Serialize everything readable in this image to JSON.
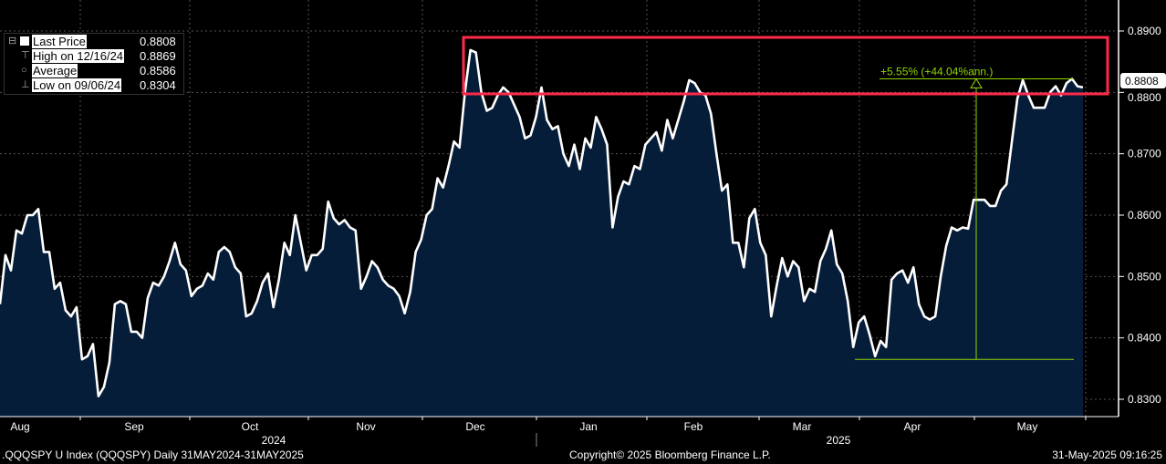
{
  "chart_data": {
    "type": "area",
    "title": ".QQQSPY U Index (QQQSPY)",
    "series": [
      {
        "name": "Last Price",
        "color": "#ffffff",
        "fill": "#061d3a",
        "values": [
          0.8455,
          0.8535,
          0.851,
          0.8575,
          0.857,
          0.86,
          0.86,
          0.861,
          0.854,
          0.854,
          0.848,
          0.849,
          0.8445,
          0.8435,
          0.845,
          0.8365,
          0.837,
          0.839,
          0.8305,
          0.832,
          0.836,
          0.8455,
          0.846,
          0.8455,
          0.841,
          0.841,
          0.84,
          0.8465,
          0.849,
          0.8485,
          0.85,
          0.8525,
          0.8555,
          0.852,
          0.851,
          0.8468,
          0.848,
          0.8485,
          0.8505,
          0.8495,
          0.854,
          0.8548,
          0.854,
          0.8515,
          0.8505,
          0.8435,
          0.844,
          0.846,
          0.849,
          0.8505,
          0.845,
          0.8495,
          0.8555,
          0.8535,
          0.86,
          0.8555,
          0.851,
          0.8535,
          0.8535,
          0.8545,
          0.8622,
          0.8595,
          0.8585,
          0.8592,
          0.858,
          0.8575,
          0.848,
          0.85,
          0.8525,
          0.8515,
          0.8495,
          0.8485,
          0.848,
          0.8468,
          0.844,
          0.8475,
          0.854,
          0.856,
          0.86,
          0.861,
          0.866,
          0.8645,
          0.868,
          0.872,
          0.871,
          0.88,
          0.8869,
          0.8865,
          0.88,
          0.877,
          0.8775,
          0.8795,
          0.8808,
          0.88,
          0.878,
          0.876,
          0.8725,
          0.873,
          0.876,
          0.8808,
          0.8755,
          0.874,
          0.8745,
          0.87,
          0.868,
          0.8715,
          0.8675,
          0.8725,
          0.871,
          0.876,
          0.874,
          0.8715,
          0.858,
          0.863,
          0.8655,
          0.865,
          0.868,
          0.8675,
          0.8715,
          0.8725,
          0.8735,
          0.8705,
          0.8755,
          0.8725,
          0.8755,
          0.8785,
          0.882,
          0.8815,
          0.88,
          0.8795,
          0.8765,
          0.87,
          0.864,
          0.865,
          0.8555,
          0.8555,
          0.8515,
          0.8595,
          0.861,
          0.8555,
          0.8535,
          0.8435,
          0.8485,
          0.853,
          0.85,
          0.8525,
          0.8515,
          0.846,
          0.848,
          0.8475,
          0.8525,
          0.8545,
          0.8575,
          0.852,
          0.8505,
          0.846,
          0.8385,
          0.8425,
          0.8435,
          0.8405,
          0.837,
          0.8395,
          0.8385,
          0.8495,
          0.8505,
          0.851,
          0.849,
          0.8515,
          0.8455,
          0.8435,
          0.843,
          0.8435,
          0.85,
          0.855,
          0.858,
          0.8575,
          0.858,
          0.8578,
          0.8625,
          0.8625,
          0.8625,
          0.8615,
          0.8615,
          0.864,
          0.865,
          0.872,
          0.879,
          0.882,
          0.8795,
          0.8775,
          0.8775,
          0.8775,
          0.88,
          0.881,
          0.8795,
          0.8815,
          0.8822,
          0.881,
          0.8808
        ]
      }
    ],
    "ylim": [
      0.8265,
      0.895
    ],
    "yticks": [
      "0.8300",
      "0.8400",
      "0.8500",
      "0.8600",
      "0.8700",
      "0.8800",
      "0.8900"
    ],
    "xticks": [
      "Aug",
      "Sep",
      "Oct",
      "Nov",
      "Dec",
      "Jan",
      "Feb",
      "Mar",
      "Apr",
      "May"
    ],
    "years": [
      "2024",
      "2025"
    ],
    "last_price_label": "0.8808",
    "grid": true,
    "legend_position": "top-left",
    "annotation": {
      "text": "+5.55% (+44.04%ann.)",
      "from_value": 0.8365,
      "to_value": 0.8822,
      "color": "#8fd400"
    },
    "highlight_box_color": "#ff2a4a"
  },
  "legend": [
    {
      "label": "Last Price",
      "value": "0.8808"
    },
    {
      "label": "High on 12/16/24",
      "value": "0.8869"
    },
    {
      "label": "Average",
      "value": "0.8586"
    },
    {
      "label": "Low on 09/06/24",
      "value": "0.8304"
    }
  ],
  "footer": {
    "left": ".QQQSPY U Index (QQQSPY)  Daily 31MAY2024-31MAY2025",
    "center": "Copyright© 2025 Bloomberg Finance L.P.",
    "right": "31-May-2025 09:16:25"
  }
}
